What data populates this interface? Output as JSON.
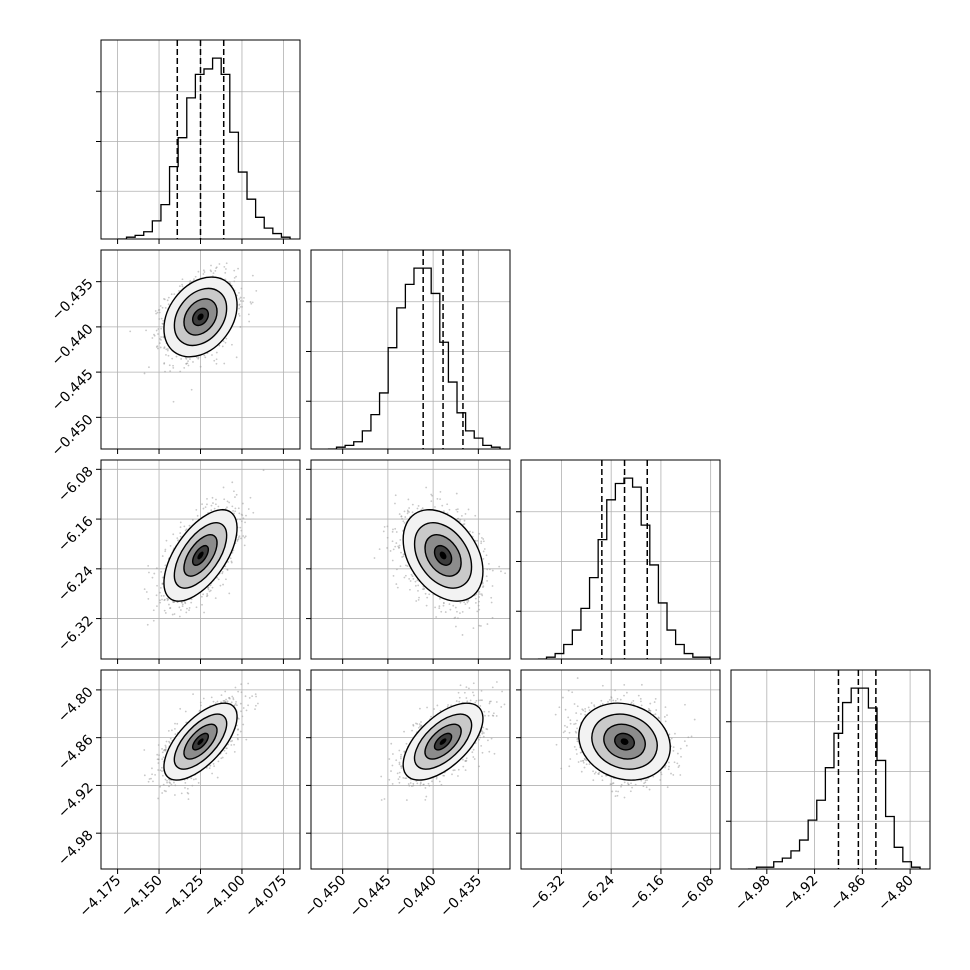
{
  "chart_data": {
    "type": "corner",
    "title": "",
    "grid": true,
    "colors": {
      "line": "#000000",
      "grid": "#b0b0b0",
      "scatter": "#9a9a9a",
      "shade_dark": "#000000",
      "shade_light": "#ffffff"
    },
    "parameters": [
      {
        "range": [
          -4.185,
          -4.065
        ],
        "ticks": [
          -4.175,
          -4.15,
          -4.125,
          -4.1,
          -4.075
        ],
        "tick_labels": [
          "−4.175",
          "−4.150",
          "−4.125",
          "−4.100",
          "−4.075"
        ],
        "median": -4.125,
        "q16": -4.139,
        "q84": -4.111,
        "sigma": 0.0105
      },
      {
        "range": [
          -0.4535,
          -0.4315
        ],
        "ticks": [
          -0.45,
          -0.445,
          -0.44,
          -0.435
        ],
        "tick_labels": [
          "−0.450",
          "−0.445",
          "−0.440",
          "−0.435"
        ],
        "median": -0.4389,
        "q16": -0.4411,
        "q84": -0.4367,
        "sigma": 0.0021
      },
      {
        "range": [
          -6.385,
          -6.065
        ],
        "ticks": [
          -6.32,
          -6.24,
          -6.16,
          -6.08
        ],
        "tick_labels": [
          "−6.32",
          "−6.24",
          "−6.16",
          "−6.08"
        ],
        "median": -6.2185,
        "q16": -6.255,
        "q84": -6.182,
        "sigma": 0.035
      },
      {
        "range": [
          -5.025,
          -4.775
        ],
        "ticks": [
          -4.98,
          -4.92,
          -4.86,
          -4.8
        ],
        "tick_labels": [
          "−4.98",
          "−4.92",
          "−4.86",
          "−4.80"
        ],
        "median": -4.865,
        "q16": -4.89,
        "q84": -4.843,
        "sigma": 0.023
      }
    ],
    "histograms": [
      [
        0,
        0.01,
        0.02,
        0.04,
        0.1,
        0.19,
        0.4,
        0.56,
        0.78,
        0.91,
        0.94,
        1.0,
        0.91,
        0.59,
        0.37,
        0.22,
        0.12,
        0.06,
        0.03,
        0.01
      ],
      [
        0,
        0.01,
        0.02,
        0.04,
        0.1,
        0.19,
        0.31,
        0.56,
        0.78,
        0.91,
        1.0,
        1.0,
        0.86,
        0.59,
        0.37,
        0.2,
        0.1,
        0.06,
        0.02,
        0.01
      ],
      [
        0,
        0.01,
        0.03,
        0.08,
        0.16,
        0.28,
        0.45,
        0.66,
        0.88,
        0.97,
        1.0,
        0.95,
        0.74,
        0.52,
        0.31,
        0.16,
        0.08,
        0.03,
        0.01,
        0.01
      ],
      [
        0.0,
        0.01,
        0.01,
        0.04,
        0.06,
        0.1,
        0.16,
        0.27,
        0.38,
        0.56,
        0.75,
        0.92,
        1.0,
        1.0,
        0.89,
        0.6,
        0.29,
        0.12,
        0.04,
        0.01
      ]
    ],
    "correlations": {
      "1-0": 0.3,
      "2-0": 0.6,
      "2-1": -0.35,
      "3-0": 0.65,
      "3-1": 0.6,
      "3-2": -0.15
    }
  }
}
